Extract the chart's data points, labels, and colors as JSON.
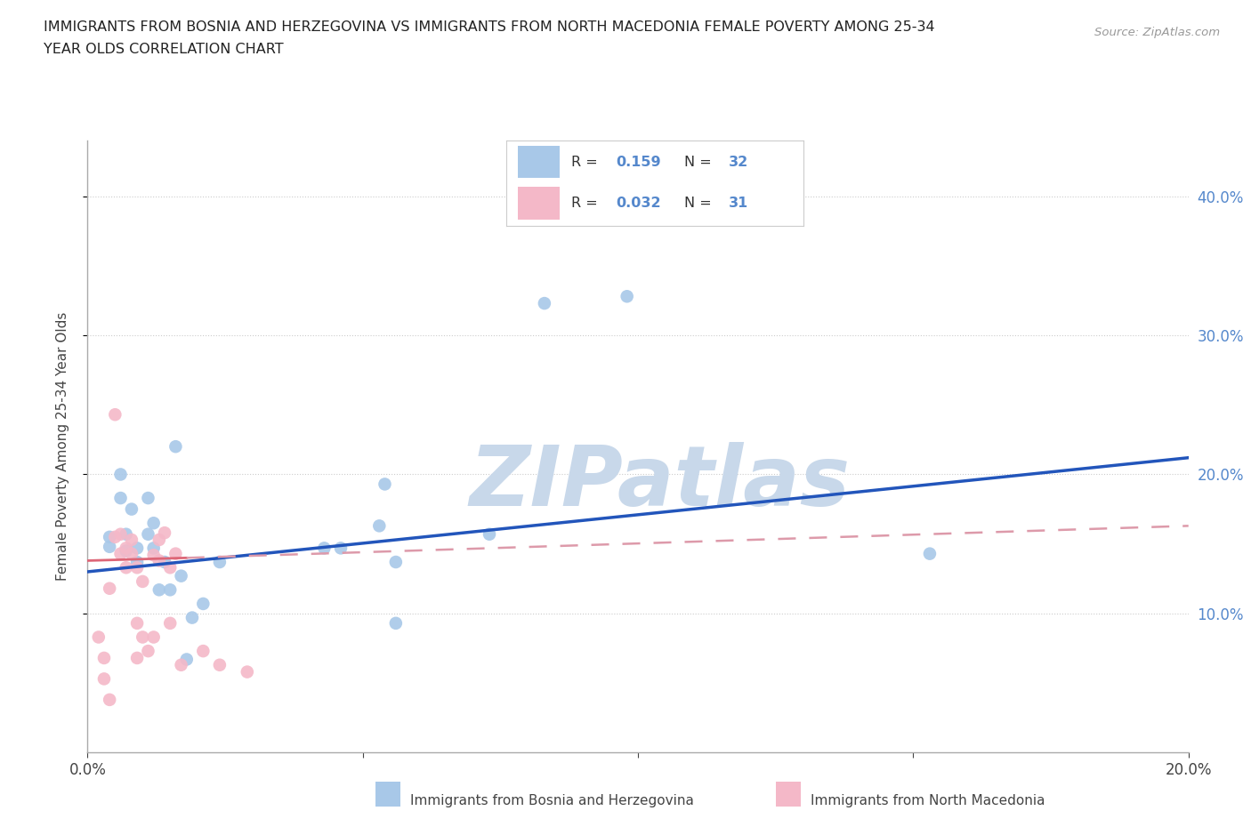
{
  "title_line1": "IMMIGRANTS FROM BOSNIA AND HERZEGOVINA VS IMMIGRANTS FROM NORTH MACEDONIA FEMALE POVERTY AMONG 25-34",
  "title_line2": "YEAR OLDS CORRELATION CHART",
  "source": "Source: ZipAtlas.com",
  "ylabel": "Female Poverty Among 25-34 Year Olds",
  "xlim": [
    0.0,
    0.2
  ],
  "ylim": [
    0.0,
    0.44
  ],
  "yticks": [
    0.1,
    0.2,
    0.3,
    0.4
  ],
  "xticks": [
    0.0,
    0.05,
    0.1,
    0.15,
    0.2
  ],
  "bosnia_color": "#a8c8e8",
  "macedonia_color": "#f4b8c8",
  "bosnia_line_color": "#2255bb",
  "macedonia_line_color": "#dd6677",
  "macedonia_dash_color": "#dd9aaa",
  "R_bosnia": 0.159,
  "N_bosnia": 32,
  "R_macedonia": 0.032,
  "N_macedonia": 31,
  "watermark": "ZIPatlas",
  "watermark_color": "#c8d8ea",
  "bosnia_scatter": [
    [
      0.004,
      0.155
    ],
    [
      0.004,
      0.148
    ],
    [
      0.006,
      0.2
    ],
    [
      0.006,
      0.183
    ],
    [
      0.007,
      0.157
    ],
    [
      0.007,
      0.145
    ],
    [
      0.008,
      0.175
    ],
    [
      0.009,
      0.147
    ],
    [
      0.009,
      0.137
    ],
    [
      0.011,
      0.183
    ],
    [
      0.011,
      0.157
    ],
    [
      0.012,
      0.165
    ],
    [
      0.012,
      0.147
    ],
    [
      0.013,
      0.117
    ],
    [
      0.014,
      0.137
    ],
    [
      0.015,
      0.117
    ],
    [
      0.016,
      0.22
    ],
    [
      0.017,
      0.127
    ],
    [
      0.018,
      0.067
    ],
    [
      0.019,
      0.097
    ],
    [
      0.021,
      0.107
    ],
    [
      0.024,
      0.137
    ],
    [
      0.043,
      0.147
    ],
    [
      0.046,
      0.147
    ],
    [
      0.053,
      0.163
    ],
    [
      0.054,
      0.193
    ],
    [
      0.056,
      0.137
    ],
    [
      0.056,
      0.093
    ],
    [
      0.073,
      0.157
    ],
    [
      0.083,
      0.323
    ],
    [
      0.098,
      0.328
    ],
    [
      0.153,
      0.143
    ]
  ],
  "macedonia_scatter": [
    [
      0.002,
      0.083
    ],
    [
      0.003,
      0.068
    ],
    [
      0.003,
      0.053
    ],
    [
      0.004,
      0.038
    ],
    [
      0.004,
      0.118
    ],
    [
      0.005,
      0.243
    ],
    [
      0.005,
      0.155
    ],
    [
      0.006,
      0.157
    ],
    [
      0.006,
      0.143
    ],
    [
      0.007,
      0.147
    ],
    [
      0.007,
      0.133
    ],
    [
      0.008,
      0.153
    ],
    [
      0.008,
      0.143
    ],
    [
      0.009,
      0.133
    ],
    [
      0.009,
      0.093
    ],
    [
      0.009,
      0.068
    ],
    [
      0.01,
      0.123
    ],
    [
      0.01,
      0.083
    ],
    [
      0.011,
      0.073
    ],
    [
      0.012,
      0.142
    ],
    [
      0.012,
      0.083
    ],
    [
      0.013,
      0.153
    ],
    [
      0.013,
      0.138
    ],
    [
      0.014,
      0.158
    ],
    [
      0.015,
      0.133
    ],
    [
      0.015,
      0.093
    ],
    [
      0.016,
      0.143
    ],
    [
      0.017,
      0.063
    ],
    [
      0.021,
      0.073
    ],
    [
      0.024,
      0.063
    ],
    [
      0.029,
      0.058
    ]
  ],
  "bosnia_trendline": [
    [
      0.0,
      0.13
    ],
    [
      0.2,
      0.212
    ]
  ],
  "macedonia_trendline_solid": [
    [
      0.0,
      0.138
    ],
    [
      0.018,
      0.14
    ]
  ],
  "macedonia_trendline_dash": [
    [
      0.018,
      0.14
    ],
    [
      0.2,
      0.163
    ]
  ],
  "grid_color": "#cccccc",
  "background_color": "#ffffff",
  "right_axis_color": "#5588cc",
  "legend_border_color": "#cccccc"
}
